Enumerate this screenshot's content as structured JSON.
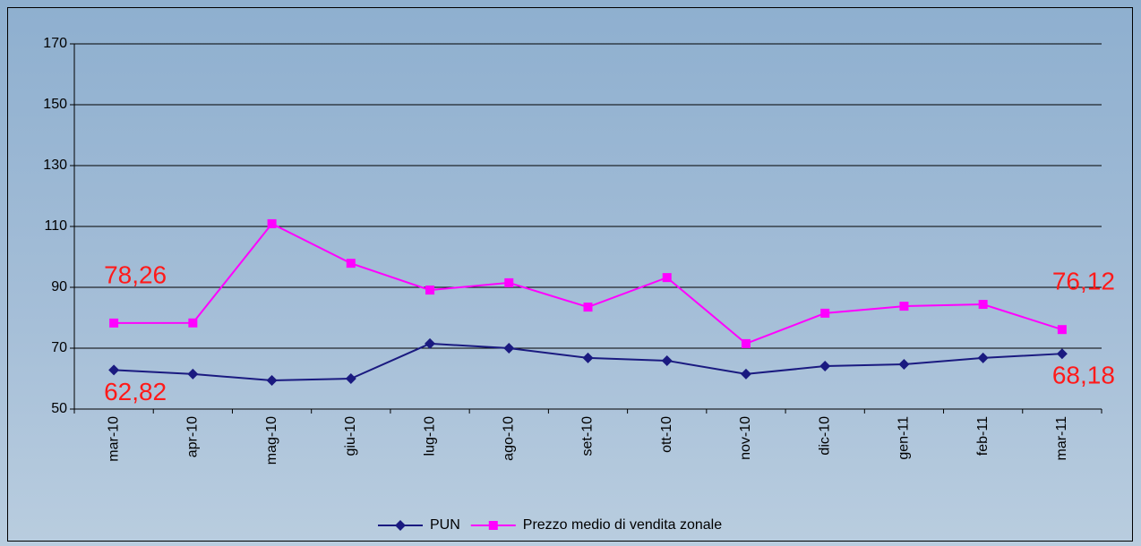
{
  "chart_data": {
    "type": "line",
    "categories": [
      "mar-10",
      "apr-10",
      "mag-10",
      "giu-10",
      "lug-10",
      "ago-10",
      "set-10",
      "ott-10",
      "nov-10",
      "dic-10",
      "gen-11",
      "feb-11",
      "mar-11"
    ],
    "series": [
      {
        "name": "PUN",
        "color": "#1a1a80",
        "marker": "diamond",
        "values": [
          62.82,
          61.5,
          59.4,
          60,
          71.5,
          70,
          66.8,
          65.9,
          61.5,
          64.1,
          64.7,
          66.8,
          68.18
        ],
        "value_labels": [
          "62,82",
          null,
          null,
          null,
          null,
          null,
          null,
          null,
          null,
          null,
          null,
          null,
          "68,18"
        ]
      },
      {
        "name": "Prezzo medio di vendita zonale",
        "color": "#ff00ff",
        "marker": "square",
        "values": [
          78.26,
          78.3,
          110.9,
          97.9,
          89.1,
          91.5,
          83.5,
          93.2,
          71.5,
          81.5,
          83.8,
          84.4,
          76.12
        ],
        "value_labels": [
          "78,26",
          null,
          null,
          null,
          null,
          null,
          null,
          null,
          null,
          null,
          null,
          null,
          "76,12"
        ]
      }
    ],
    "ylim": [
      50,
      170
    ],
    "yticks": [
      50,
      70,
      90,
      110,
      130,
      150,
      170
    ],
    "grid": true,
    "legend": "bottom"
  }
}
